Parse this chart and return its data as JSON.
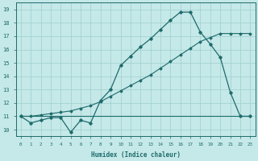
{
  "xlabel": "Humidex (Indice chaleur)",
  "bg_color": "#c5e8e8",
  "line_color": "#1e6b6b",
  "grid_color": "#9fcfcf",
  "xlim": [
    -0.5,
    23.5
  ],
  "ylim": [
    9.5,
    19.5
  ],
  "yticks": [
    10,
    11,
    12,
    13,
    14,
    15,
    16,
    17,
    18,
    19
  ],
  "xticks": [
    0,
    1,
    2,
    3,
    4,
    5,
    6,
    7,
    8,
    9,
    10,
    11,
    12,
    13,
    14,
    15,
    16,
    17,
    18,
    19,
    20,
    21,
    22,
    23
  ],
  "line1_x": [
    0,
    1,
    2,
    3,
    4,
    5,
    6,
    7,
    8,
    9,
    10,
    11,
    12,
    13,
    14,
    15,
    16,
    17,
    18,
    19,
    20,
    21,
    22,
    23
  ],
  "line1_y": [
    11.0,
    10.5,
    10.7,
    10.9,
    10.9,
    9.8,
    10.7,
    10.5,
    12.2,
    13.0,
    14.8,
    15.5,
    16.2,
    16.8,
    17.5,
    18.2,
    18.8,
    18.8,
    17.3,
    16.4,
    15.4,
    12.8,
    11.0,
    11.0
  ],
  "line2_x": [
    0,
    1,
    2,
    3,
    4,
    5,
    6,
    7,
    8,
    9,
    10,
    11,
    12,
    13,
    14,
    15,
    16,
    17,
    18,
    19,
    20,
    21,
    22,
    23
  ],
  "line2_y": [
    11.0,
    11.0,
    11.1,
    11.2,
    11.3,
    11.4,
    11.6,
    11.8,
    12.1,
    12.5,
    12.9,
    13.3,
    13.7,
    14.1,
    14.6,
    15.1,
    15.6,
    16.1,
    16.6,
    16.9,
    17.2,
    17.2,
    17.2,
    17.2
  ],
  "line3_x": [
    0,
    23
  ],
  "line3_y": [
    11.0,
    11.0
  ]
}
